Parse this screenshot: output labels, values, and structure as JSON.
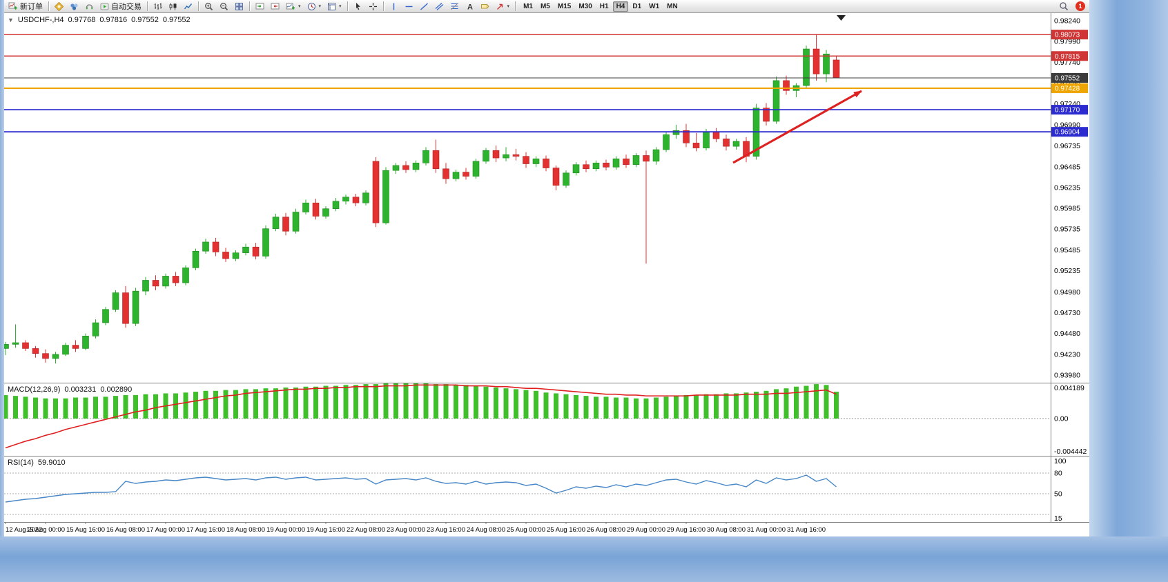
{
  "toolbar": {
    "new_order_label": "新订单",
    "autotrading_label": "自动交易",
    "timeframes": [
      "M1",
      "M5",
      "M15",
      "M30",
      "H1",
      "H4",
      "D1",
      "W1",
      "MN"
    ],
    "active_timeframe": "H4",
    "notification_count": "1"
  },
  "chart_info": {
    "collapse_arrow": "▼",
    "symbol_period": "USDCHF-,H4",
    "open": "0.97768",
    "high": "0.97816",
    "low": "0.97552",
    "close": "0.97552"
  },
  "indicators": {
    "macd_label": "MACD(12,26,9)",
    "macd_value": "0.003231",
    "macd_signal": "0.002890",
    "rsi_label": "RSI(14)",
    "rsi_value": "59.9010"
  },
  "colors": {
    "up": "#2eb32e",
    "down": "#e33030",
    "up_stroke": "#1f8a1f",
    "down_stroke": "#b02525",
    "macd_hist": "#3fbf2a",
    "macd_signal": "#e02020",
    "rsi_line": "#4787c7",
    "arrow": "#dd2222"
  },
  "chart_data": [
    {
      "type": "candlestick",
      "title": "USDCHF- H4",
      "y_range": [
        0.93889,
        0.98331
      ],
      "y_axis_labels": [
        "0.98240",
        "0.97990",
        "0.97740",
        "0.97490",
        "0.97240",
        "0.96990",
        "0.96735",
        "0.96485",
        "0.96235",
        "0.95985",
        "0.95735",
        "0.95485",
        "0.95235",
        "0.94980",
        "0.94730",
        "0.94480",
        "0.94230",
        "0.93980"
      ],
      "x_labels": [
        "12 Aug 2022",
        "15 Aug 00:00",
        "15 Aug 16:00",
        "16 Aug 08:00",
        "17 Aug 00:00",
        "17 Aug 16:00",
        "18 Aug 08:00",
        "19 Aug 00:00",
        "19 Aug 16:00",
        "22 Aug 08:00",
        "23 Aug 00:00",
        "23 Aug 16:00",
        "24 Aug 08:00",
        "25 Aug 00:00",
        "25 Aug 16:00",
        "26 Aug 08:00",
        "29 Aug 00:00",
        "29 Aug 16:00",
        "30 Aug 08:00",
        "31 Aug 00:00",
        "31 Aug 16:00"
      ],
      "candles": [
        [
          0.943,
          0.9438,
          0.9422,
          0.9435
        ],
        [
          0.9435,
          0.9459,
          0.9431,
          0.9437
        ],
        [
          0.9437,
          0.944,
          0.9427,
          0.943
        ],
        [
          0.943,
          0.9433,
          0.9419,
          0.9424
        ],
        [
          0.9424,
          0.9429,
          0.9413,
          0.9418
        ],
        [
          0.9418,
          0.9426,
          0.9412,
          0.9423
        ],
        [
          0.9423,
          0.9437,
          0.9421,
          0.9434
        ],
        [
          0.9434,
          0.944,
          0.9426,
          0.943
        ],
        [
          0.943,
          0.9448,
          0.9428,
          0.9445
        ],
        [
          0.9445,
          0.9465,
          0.9442,
          0.9461
        ],
        [
          0.9461,
          0.948,
          0.9458,
          0.9477
        ],
        [
          0.9477,
          0.95,
          0.9474,
          0.9497
        ],
        [
          0.9497,
          0.9505,
          0.9455,
          0.946
        ],
        [
          0.946,
          0.9503,
          0.9457,
          0.9499
        ],
        [
          0.9499,
          0.9516,
          0.9494,
          0.9512
        ],
        [
          0.9512,
          0.9518,
          0.95,
          0.9505
        ],
        [
          0.9505,
          0.952,
          0.9502,
          0.9517
        ],
        [
          0.9517,
          0.9522,
          0.9505,
          0.9509
        ],
        [
          0.9509,
          0.953,
          0.9506,
          0.9527
        ],
        [
          0.9527,
          0.955,
          0.9524,
          0.9547
        ],
        [
          0.9547,
          0.9562,
          0.9544,
          0.9558
        ],
        [
          0.9558,
          0.9563,
          0.9541,
          0.9546
        ],
        [
          0.9546,
          0.9551,
          0.9534,
          0.9538
        ],
        [
          0.9538,
          0.9548,
          0.9535,
          0.9545
        ],
        [
          0.9545,
          0.9556,
          0.9542,
          0.9552
        ],
        [
          0.9552,
          0.9557,
          0.9537,
          0.9541
        ],
        [
          0.9541,
          0.9578,
          0.9538,
          0.9574
        ],
        [
          0.9574,
          0.9592,
          0.9571,
          0.9588
        ],
        [
          0.9588,
          0.9593,
          0.9566,
          0.9571
        ],
        [
          0.9571,
          0.9598,
          0.9568,
          0.9594
        ],
        [
          0.9594,
          0.9609,
          0.9591,
          0.9605
        ],
        [
          0.9605,
          0.961,
          0.9585,
          0.9589
        ],
        [
          0.9589,
          0.9601,
          0.9586,
          0.9598
        ],
        [
          0.9598,
          0.9611,
          0.9595,
          0.9607
        ],
        [
          0.9607,
          0.9615,
          0.9603,
          0.9612
        ],
        [
          0.9612,
          0.9616,
          0.9601,
          0.9605
        ],
        [
          0.9605,
          0.962,
          0.9602,
          0.9617
        ],
        [
          0.9655,
          0.966,
          0.9576,
          0.9581
        ],
        [
          0.9581,
          0.9648,
          0.9579,
          0.9644
        ],
        [
          0.9644,
          0.9653,
          0.964,
          0.965
        ],
        [
          0.965,
          0.9655,
          0.9641,
          0.9645
        ],
        [
          0.9645,
          0.9656,
          0.9642,
          0.9653
        ],
        [
          0.9653,
          0.9672,
          0.965,
          0.9668
        ],
        [
          0.9668,
          0.9681,
          0.9641,
          0.9646
        ],
        [
          0.9646,
          0.9653,
          0.9628,
          0.9634
        ],
        [
          0.9634,
          0.9645,
          0.9631,
          0.9642
        ],
        [
          0.9642,
          0.9647,
          0.9633,
          0.9637
        ],
        [
          0.9637,
          0.9658,
          0.9634,
          0.9655
        ],
        [
          0.9655,
          0.9671,
          0.9652,
          0.9668
        ],
        [
          0.9668,
          0.9674,
          0.9654,
          0.9659
        ],
        [
          0.9659,
          0.9672,
          0.9655,
          0.9663
        ],
        [
          0.9663,
          0.967,
          0.9656,
          0.9661
        ],
        [
          0.9661,
          0.9666,
          0.9647,
          0.9652
        ],
        [
          0.9652,
          0.9661,
          0.9648,
          0.9658
        ],
        [
          0.9658,
          0.9662,
          0.9643,
          0.9647
        ],
        [
          0.9647,
          0.965,
          0.962,
          0.9626
        ],
        [
          0.9626,
          0.9644,
          0.9623,
          0.9641
        ],
        [
          0.9641,
          0.9654,
          0.9638,
          0.9651
        ],
        [
          0.9651,
          0.9656,
          0.9642,
          0.9646
        ],
        [
          0.9646,
          0.9656,
          0.9643,
          0.9653
        ],
        [
          0.9653,
          0.9657,
          0.9644,
          0.9648
        ],
        [
          0.9648,
          0.9661,
          0.9645,
          0.9658
        ],
        [
          0.9658,
          0.9663,
          0.9647,
          0.9651
        ],
        [
          0.9651,
          0.9665,
          0.9648,
          0.9662
        ],
        [
          0.9662,
          0.9668,
          0.9532,
          0.9655
        ],
        [
          0.9655,
          0.9672,
          0.9651,
          0.9669
        ],
        [
          0.9669,
          0.9691,
          0.9666,
          0.9687
        ],
        [
          0.9687,
          0.9699,
          0.9682,
          0.9692
        ],
        [
          0.9692,
          0.97,
          0.9672,
          0.9677
        ],
        [
          0.9677,
          0.9689,
          0.9667,
          0.9671
        ],
        [
          0.9671,
          0.9694,
          0.9668,
          0.969
        ],
        [
          0.969,
          0.9695,
          0.9678,
          0.9682
        ],
        [
          0.9682,
          0.9687,
          0.9668,
          0.9673
        ],
        [
          0.9673,
          0.9682,
          0.9669,
          0.9679
        ],
        [
          0.9679,
          0.9684,
          0.9654,
          0.9661
        ],
        [
          0.9661,
          0.9724,
          0.9657,
          0.9719
        ],
        [
          0.9719,
          0.9725,
          0.9698,
          0.9703
        ],
        [
          0.9703,
          0.9757,
          0.97,
          0.9752
        ],
        [
          0.9752,
          0.9758,
          0.9735,
          0.974
        ],
        [
          0.974,
          0.9749,
          0.9732,
          0.9746
        ],
        [
          0.9746,
          0.9794,
          0.9742,
          0.979
        ],
        [
          0.979,
          0.98073,
          0.9752,
          0.976
        ],
        [
          0.976,
          0.9789,
          0.975,
          0.9784
        ],
        [
          0.97768,
          0.97816,
          0.97552,
          0.97552
        ]
      ],
      "h_lines": [
        {
          "price": 0.98073,
          "label": "0.98073",
          "color": "#d03535",
          "width": 1.5,
          "name": "resistance-line-1"
        },
        {
          "price": 0.97815,
          "label": "0.97815",
          "color": "#d03535",
          "width": 1.5,
          "name": "resistance-line-2"
        },
        {
          "price": 0.97552,
          "label": "0.97552",
          "color": "#3c3c3c",
          "width": 1,
          "name": "current-price-line"
        },
        {
          "price": 0.97428,
          "label": "0.97428",
          "color": "#efa500",
          "width": 2.2,
          "name": "pivot-line"
        },
        {
          "price": 0.9717,
          "label": "0.97170",
          "color": "#2b2bd0",
          "width": 1.8,
          "name": "support-line-1"
        },
        {
          "price": 0.96904,
          "label": "0.96904",
          "color": "#2b2bd0",
          "width": 1.8,
          "name": "support-line-2"
        }
      ],
      "trend_arrow": {
        "from": [
          1056,
          217
        ],
        "to": [
          1242,
          113
        ]
      }
    },
    {
      "type": "bar",
      "name": "MACD(12,26,9)",
      "y_range": [
        -0.004442,
        0.004189
      ],
      "y_axis_labels": [
        "0.004189",
        "0.00",
        "-0.004442"
      ],
      "values": [
        0.0028,
        0.0027,
        0.0026,
        0.0025,
        0.0024,
        0.0024,
        0.0024,
        0.0025,
        0.0025,
        0.0026,
        0.0026,
        0.0027,
        0.0028,
        0.0028,
        0.0029,
        0.0029,
        0.003,
        0.003,
        0.0031,
        0.0032,
        0.0033,
        0.0033,
        0.0034,
        0.0034,
        0.0035,
        0.0035,
        0.0036,
        0.0036,
        0.0037,
        0.0037,
        0.0038,
        0.0038,
        0.0039,
        0.0039,
        0.004,
        0.004,
        0.0041,
        0.0041,
        0.0042,
        0.0042,
        0.0042,
        0.0042,
        0.0042,
        0.0041,
        0.0041,
        0.004,
        0.004,
        0.0039,
        0.0038,
        0.0037,
        0.0036,
        0.0035,
        0.0034,
        0.0033,
        0.0031,
        0.003,
        0.0029,
        0.0028,
        0.0027,
        0.0026,
        0.0026,
        0.0025,
        0.0025,
        0.0024,
        0.0024,
        0.0025,
        0.0026,
        0.0027,
        0.0028,
        0.0028,
        0.0029,
        0.0029,
        0.003,
        0.003,
        0.0031,
        0.0032,
        0.0033,
        0.0035,
        0.0036,
        0.0038,
        0.0039,
        0.0041,
        0.004,
        0.0032
      ],
      "signal": [
        -0.0035,
        -0.0031,
        -0.0027,
        -0.0024,
        -0.002,
        -0.0017,
        -0.0013,
        -0.001,
        -0.0007,
        -0.0004,
        -0.0001,
        0.0002,
        0.0005,
        0.0008,
        0.001,
        0.0013,
        0.0015,
        0.0017,
        0.0019,
        0.0021,
        0.0023,
        0.0025,
        0.0027,
        0.0028,
        0.003,
        0.0031,
        0.0032,
        0.0033,
        0.0034,
        0.0035,
        0.0035,
        0.0036,
        0.0036,
        0.0037,
        0.0037,
        0.0038,
        0.0038,
        0.0038,
        0.0039,
        0.0039,
        0.0039,
        0.004,
        0.004,
        0.004,
        0.004,
        0.004,
        0.0039,
        0.0039,
        0.0039,
        0.0038,
        0.0038,
        0.0037,
        0.0036,
        0.0036,
        0.0035,
        0.0034,
        0.0033,
        0.0032,
        0.0031,
        0.003,
        0.0029,
        0.0029,
        0.0028,
        0.0028,
        0.0027,
        0.0027,
        0.0027,
        0.0027,
        0.0027,
        0.0028,
        0.0028,
        0.0028,
        0.0028,
        0.0028,
        0.0029,
        0.0029,
        0.0029,
        0.003,
        0.003,
        0.0031,
        0.0032,
        0.0033,
        0.0034,
        0.0029
      ]
    },
    {
      "type": "line",
      "name": "RSI(14)",
      "y_range": [
        15,
        100
      ],
      "levels": [
        80,
        50,
        20
      ],
      "y_axis_labels": [
        "100",
        "80",
        "50",
        "15"
      ],
      "values": [
        38,
        40,
        42,
        43,
        45,
        47,
        49,
        50,
        51,
        52,
        52,
        53,
        68,
        65,
        67,
        68,
        70,
        69,
        71,
        73,
        74,
        72,
        70,
        71,
        72,
        70,
        73,
        74,
        71,
        73,
        74,
        70,
        71,
        72,
        73,
        71,
        72,
        64,
        70,
        71,
        72,
        70,
        73,
        68,
        65,
        66,
        64,
        68,
        64,
        66,
        67,
        66,
        62,
        64,
        58,
        51,
        55,
        60,
        58,
        61,
        59,
        63,
        60,
        64,
        62,
        66,
        70,
        71,
        67,
        64,
        69,
        66,
        62,
        64,
        60,
        70,
        65,
        73,
        70,
        72,
        77,
        68,
        72,
        60
      ]
    }
  ]
}
